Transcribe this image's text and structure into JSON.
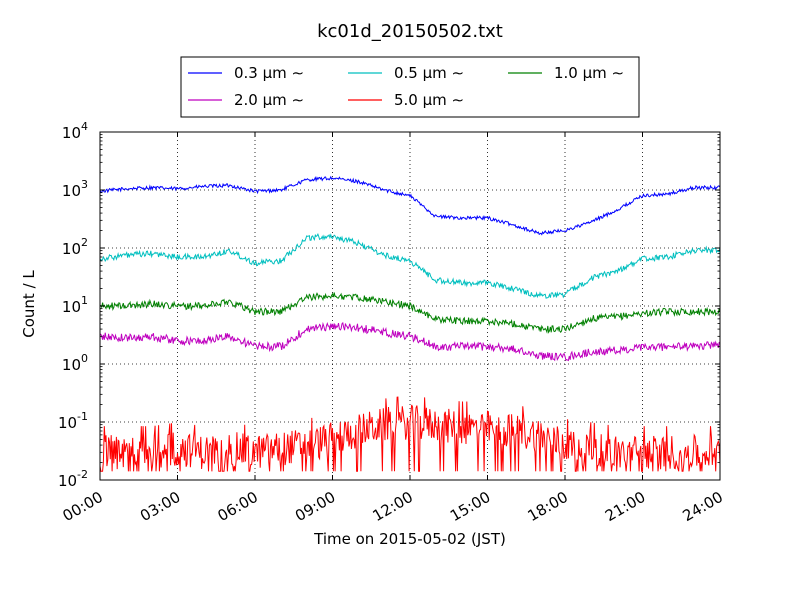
{
  "chart_data": {
    "type": "line",
    "title": "kc01d_20150502.txt",
    "xlabel": "Time on 2015-05-02 (JST)",
    "ylabel": "Count / L",
    "y_scale": "log",
    "xlim": [
      "00:00",
      "24:00"
    ],
    "ylim": [
      0.01,
      10000
    ],
    "grid": true,
    "legend_position": "top-center",
    "x_ticks": [
      "00:00",
      "03:00",
      "06:00",
      "09:00",
      "12:00",
      "15:00",
      "18:00",
      "21:00",
      "24:00"
    ],
    "y_ticks": [
      {
        "value": 0.01,
        "base": "10",
        "exp": "-2"
      },
      {
        "value": 0.1,
        "base": "10",
        "exp": "-1"
      },
      {
        "value": 1,
        "base": "10",
        "exp": "0"
      },
      {
        "value": 10,
        "base": "10",
        "exp": "1"
      },
      {
        "value": 100,
        "base": "10",
        "exp": "2"
      },
      {
        "value": 1000,
        "base": "10",
        "exp": "3"
      },
      {
        "value": 10000,
        "base": "10",
        "exp": "4"
      }
    ],
    "x": [
      "00:00",
      "01:00",
      "02:00",
      "03:00",
      "04:00",
      "05:00",
      "06:00",
      "07:00",
      "08:00",
      "09:00",
      "10:00",
      "11:00",
      "12:00",
      "13:00",
      "14:00",
      "15:00",
      "16:00",
      "17:00",
      "18:00",
      "19:00",
      "20:00",
      "21:00",
      "22:00",
      "23:00",
      "24:00"
    ],
    "series": [
      {
        "name": "0.3 μm ∼",
        "color": "#0000ff",
        "noise": 0.03,
        "values": [
          950,
          1050,
          1100,
          1050,
          1150,
          1200,
          950,
          1000,
          1500,
          1600,
          1400,
          1000,
          800,
          350,
          330,
          330,
          250,
          180,
          200,
          280,
          450,
          800,
          850,
          1100,
          1100
        ]
      },
      {
        "name": "0.5 μm ∼",
        "color": "#00bfbf",
        "noise": 0.05,
        "values": [
          65,
          75,
          80,
          70,
          70,
          90,
          55,
          60,
          150,
          160,
          120,
          75,
          60,
          28,
          25,
          25,
          20,
          15,
          16,
          30,
          40,
          65,
          70,
          90,
          95
        ]
      },
      {
        "name": "1.0 μm ∼",
        "color": "#008000",
        "noise": 0.06,
        "values": [
          10,
          10,
          11,
          10,
          10,
          12,
          8,
          8,
          14,
          15,
          14,
          12,
          10,
          6,
          5.5,
          5.5,
          5,
          4,
          4,
          6,
          6.5,
          7.5,
          8,
          8,
          8
        ]
      },
      {
        "name": "2.0 μm ∼",
        "color": "#bf00bf",
        "noise": 0.07,
        "values": [
          3,
          2.8,
          3,
          2.5,
          2.5,
          3,
          2,
          2,
          4,
          4.5,
          4.2,
          3.5,
          3,
          2,
          2,
          2,
          1.8,
          1.4,
          1.3,
          1.6,
          1.7,
          1.9,
          2,
          2,
          2.2
        ]
      },
      {
        "name": "5.0 μm ∼",
        "color": "#ff0000",
        "noise": 0.3,
        "values": [
          0.03,
          0.03,
          0.03,
          0.035,
          0.03,
          0.035,
          0.03,
          0.035,
          0.04,
          0.05,
          0.07,
          0.09,
          0.1,
          0.09,
          0.08,
          0.08,
          0.07,
          0.06,
          0.04,
          0.035,
          0.03,
          0.03,
          0.03,
          0.03,
          0.03
        ]
      }
    ]
  }
}
